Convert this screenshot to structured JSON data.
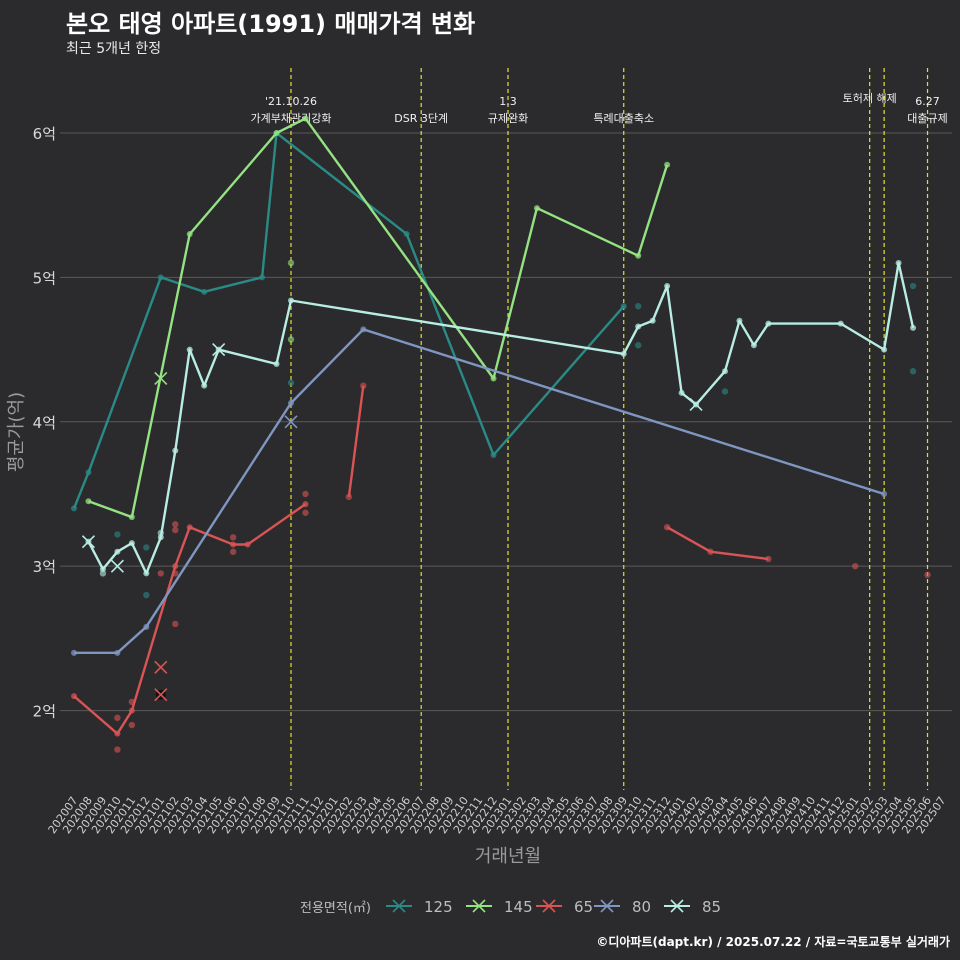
{
  "title": "본오 태영 아파트(1991) 매매가격 변화",
  "subtitle": "최근 5개년 한정",
  "credit": "©디아파트(dapt.kr) / 2025.07.22 / 자료=국토교통부 실거래가",
  "chart_data": {
    "type": "line",
    "xlabel": "거래년월",
    "ylabel": "평균가(억)",
    "ylim": [
      1.45,
      6.45
    ],
    "yticks": [
      2,
      3,
      4,
      5,
      6
    ],
    "ytick_labels": [
      "2억",
      "3억",
      "4억",
      "5억",
      "6억"
    ],
    "grid": true,
    "legend_title": "전용면적(㎡)",
    "legend_position": "bottom",
    "categories": [
      "202007",
      "202008",
      "202009",
      "202010",
      "202011",
      "202012",
      "202101",
      "202102",
      "202103",
      "202104",
      "202105",
      "202106",
      "202107",
      "202108",
      "202109",
      "202110",
      "202111",
      "202112",
      "202201",
      "202202",
      "202203",
      "202204",
      "202205",
      "202206",
      "202207",
      "202208",
      "202209",
      "202210",
      "202211",
      "202212",
      "202301",
      "202302",
      "202303",
      "202304",
      "202305",
      "202306",
      "202307",
      "202308",
      "202309",
      "202310",
      "202311",
      "202312",
      "202401",
      "202402",
      "202403",
      "202404",
      "202405",
      "202406",
      "202407",
      "202408",
      "202409",
      "202410",
      "202411",
      "202412",
      "202501",
      "202502",
      "202503",
      "202504",
      "202505",
      "202506",
      "202507"
    ],
    "annotations": [
      {
        "x": "202110",
        "text": "'21.10.26\n가계부채관리강화"
      },
      {
        "x": "202207",
        "text": "DSR 3단계"
      },
      {
        "x": "202301",
        "text": "1.3\n규제완화"
      },
      {
        "x": "202309",
        "text": "특례대출축소"
      },
      {
        "x": "202502",
        "text": "토허제 해제"
      },
      {
        "x": "202503",
        "text": ""
      },
      {
        "x": "202506",
        "text": "6.27\n대출규제"
      }
    ],
    "series": [
      {
        "name": "125",
        "color": "#2a8a86",
        "line": [
          [
            "202007",
            3.4
          ],
          [
            "202008",
            3.65
          ],
          [
            "202101",
            5.0
          ],
          [
            "202104",
            4.9
          ],
          [
            "202108",
            5.0
          ],
          [
            "202109",
            6.0
          ],
          [
            "202206",
            5.3
          ],
          [
            "202212",
            3.77
          ],
          [
            "202309",
            4.8
          ]
        ],
        "points": [
          [
            "202010",
            3.22
          ],
          [
            "202012",
            3.13
          ],
          [
            "202012",
            2.8
          ],
          [
            "202110",
            4.27
          ],
          [
            "202310",
            4.8
          ],
          [
            "202310",
            4.53
          ],
          [
            "202404",
            4.21
          ],
          [
            "202505",
            4.94
          ],
          [
            "202505",
            4.35
          ]
        ],
        "cancelled": []
      },
      {
        "name": "145",
        "color": "#94e281",
        "line": [
          [
            "202008",
            3.45
          ],
          [
            "202011",
            3.34
          ],
          [
            "202103",
            5.3
          ],
          [
            "202109",
            6.0
          ],
          [
            "202111",
            6.1
          ],
          [
            "202212",
            4.3
          ],
          [
            "202303",
            5.48
          ],
          [
            "202310",
            5.15
          ],
          [
            "202312",
            5.78
          ]
        ],
        "points": [
          [
            "202110",
            5.1
          ],
          [
            "202110",
            4.57
          ]
        ],
        "cancelled": [
          [
            "202101",
            4.3
          ]
        ]
      },
      {
        "name": "65",
        "color": "#d95454",
        "line": [
          [
            "202007",
            2.1
          ],
          [
            "202010",
            1.84
          ],
          [
            "202011",
            2.0
          ],
          [
            "202102",
            3.0
          ],
          [
            "202103",
            3.27
          ],
          [
            "202106",
            3.15
          ],
          [
            "202107",
            3.15
          ],
          [
            "202111",
            3.43
          ]
        ],
        "points": [
          [
            "202010",
            1.73
          ],
          [
            "202010",
            1.95
          ],
          [
            "202011",
            1.9
          ],
          [
            "202011",
            2.06
          ],
          [
            "202101",
            2.95
          ],
          [
            "202102",
            3.25
          ],
          [
            "202102",
            3.29
          ],
          [
            "202102",
            2.6
          ],
          [
            "202102",
            2.95
          ],
          [
            "202106",
            3.1
          ],
          [
            "202106",
            3.2
          ],
          [
            "202111",
            3.5
          ],
          [
            "202111",
            3.37
          ],
          [
            "202202",
            3.48
          ],
          [
            "202203",
            4.25
          ],
          [
            "202501",
            3.0
          ],
          [
            "202506",
            2.94
          ],
          [
            "202312",
            3.27
          ],
          [
            "202403",
            3.1
          ],
          [
            "202407",
            3.05
          ]
        ],
        "segments": [
          [
            [
              "202202",
              3.48
            ],
            [
              "202203",
              4.25
            ]
          ],
          [
            [
              "202312",
              3.27
            ],
            [
              "202403",
              3.1
            ],
            [
              "202407",
              3.05
            ]
          ]
        ],
        "cancelled": [
          [
            "202101",
            2.3
          ],
          [
            "202101",
            2.11
          ]
        ]
      },
      {
        "name": "80",
        "color": "#7f96c2",
        "line": [
          [
            "202007",
            2.4
          ],
          [
            "202010",
            2.4
          ],
          [
            "202012",
            2.58
          ],
          [
            "202110",
            4.13
          ],
          [
            "202203",
            4.64
          ],
          [
            "202503",
            3.5
          ]
        ],
        "points": [],
        "cancelled": [
          [
            "202110",
            4.0
          ]
        ]
      },
      {
        "name": "85",
        "color": "#b8ede3",
        "line": [
          [
            "202008",
            3.17
          ],
          [
            "202009",
            2.98
          ],
          [
            "202010",
            3.1
          ],
          [
            "202011",
            3.16
          ],
          [
            "202012",
            2.95
          ],
          [
            "202101",
            3.2
          ],
          [
            "202102",
            3.8
          ],
          [
            "202103",
            4.5
          ],
          [
            "202104",
            4.25
          ],
          [
            "202105",
            4.5
          ],
          [
            "202109",
            4.4
          ],
          [
            "202110",
            4.84
          ],
          [
            "202309",
            4.47
          ],
          [
            "202310",
            4.66
          ],
          [
            "202311",
            4.7
          ],
          [
            "202312",
            4.94
          ],
          [
            "202401",
            4.2
          ],
          [
            "202402",
            4.12
          ],
          [
            "202404",
            4.35
          ],
          [
            "202405",
            4.7
          ],
          [
            "202406",
            4.53
          ],
          [
            "202407",
            4.68
          ],
          [
            "202412",
            4.68
          ],
          [
            "202503",
            4.5
          ],
          [
            "202504",
            5.1
          ],
          [
            "202505",
            4.65
          ]
        ],
        "points": [
          [
            "202101",
            3.23
          ],
          [
            "202009",
            2.95
          ]
        ],
        "cancelled": [
          [
            "202008",
            3.17
          ],
          [
            "202010",
            3.0
          ],
          [
            "202105",
            4.5
          ],
          [
            "202402",
            4.12
          ]
        ]
      }
    ]
  }
}
